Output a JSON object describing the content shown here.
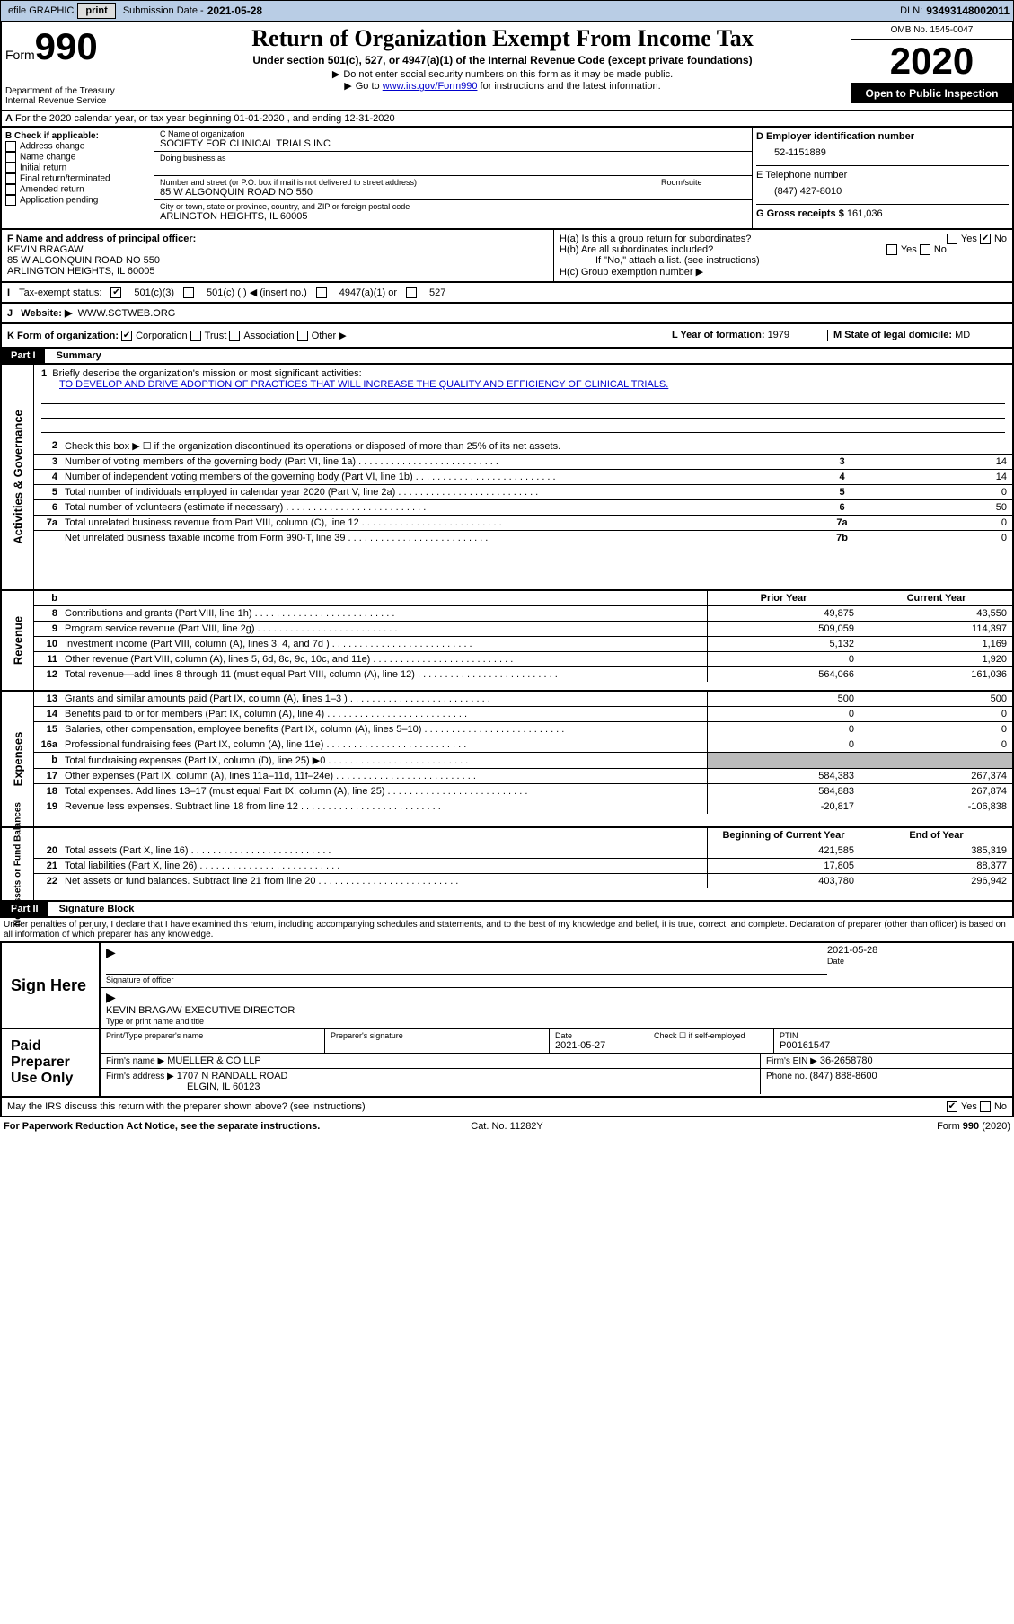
{
  "topbar": {
    "efile": "efile GRAPHIC",
    "print": "print",
    "subdate_label": "Submission Date - ",
    "subdate": "2021-05-28",
    "dln_label": "DLN: ",
    "dln": "93493148002011"
  },
  "header": {
    "form_label": "Form",
    "form_num": "990",
    "dept": "Department of the Treasury",
    "irs": "Internal Revenue Service",
    "title": "Return of Organization Exempt From Income Tax",
    "subtitle": "Under section 501(c), 527, or 4947(a)(1) of the Internal Revenue Code (except private foundations)",
    "instr1": "Do not enter social security numbers on this form as it may be made public.",
    "instr2_pre": "Go to ",
    "instr2_link": "www.irs.gov/Form990",
    "instr2_post": " for instructions and the latest information.",
    "omb": "OMB No. 1545-0047",
    "year": "2020",
    "open": "Open to Public Inspection"
  },
  "rowA": {
    "text": "For the 2020 calendar year, or tax year beginning 01-01-2020     , and ending 12-31-2020",
    "prefix": "A"
  },
  "checkB": {
    "title": "B Check if applicable:",
    "items": [
      "Address change",
      "Name change",
      "Initial return",
      "Final return/terminated",
      "Amended return",
      "Application pending"
    ]
  },
  "orgC": {
    "name_label": "C Name of organization",
    "name": "SOCIETY FOR CLINICAL TRIALS INC",
    "dba_label": "Doing business as",
    "addr_label": "Number and street (or P.O. box if mail is not delivered to street address)",
    "room_label": "Room/suite",
    "addr": "85 W ALGONQUIN ROAD NO 550",
    "city_label": "City or town, state or province, country, and ZIP or foreign postal code",
    "city": "ARLINGTON HEIGHTS, IL  60005"
  },
  "rightD": {
    "ein_label": "D Employer identification number",
    "ein": "52-1151889",
    "phone_label": "E Telephone number",
    "phone": "(847) 427-8010",
    "gross_label": "G Gross receipts $ ",
    "gross": "161,036"
  },
  "rowF": {
    "label": "F  Name and address of principal officer:",
    "name": "KEVIN BRAGAW",
    "addr1": "85 W ALGONQUIN ROAD NO 550",
    "addr2": "ARLINGTON HEIGHTS, IL  60005"
  },
  "rowH": {
    "ha": "H(a)  Is this a group return for subordinates?",
    "hb": "H(b)  Are all subordinates included?",
    "hb_note": "If \"No,\" attach a list. (see instructions)",
    "hc": "H(c)  Group exemption number ▶",
    "yes": "Yes",
    "no": "No"
  },
  "taxI": {
    "label": "Tax-exempt status:",
    "opt1": "501(c)(3)",
    "opt2": "501(c) (  ) ◀ (insert no.)",
    "opt3": "4947(a)(1) or",
    "opt4": "527"
  },
  "rowJ": {
    "label": "J",
    "web_label": "Website: ▶",
    "web": "WWW.SCTWEB.ORG"
  },
  "rowK": {
    "label": "K Form of organization:",
    "corp": "Corporation",
    "trust": "Trust",
    "assoc": "Association",
    "other": "Other ▶",
    "L_label": "L Year of formation: ",
    "L_val": "1979",
    "M_label": "M State of legal domicile: ",
    "M_val": "MD"
  },
  "part1": {
    "hdr": "Part I",
    "title": "Summary",
    "line1_label": "Briefly describe the organization's mission or most significant activities:",
    "line1_text": "TO DEVELOP AND DRIVE ADOPTION OF PRACTICES THAT WILL INCREASE THE QUALITY AND EFFICIENCY OF CLINICAL TRIALS.",
    "line2": "Check this box ▶ ☐  if the organization discontinued its operations or disposed of more than 25% of its net assets.",
    "prior_year": "Prior Year",
    "current_year": "Current Year",
    "begin_year": "Beginning of Current Year",
    "end_year": "End of Year",
    "lines_gov": [
      {
        "n": "3",
        "t": "Number of voting members of the governing body (Part VI, line 1a)",
        "box": "3",
        "v": "14"
      },
      {
        "n": "4",
        "t": "Number of independent voting members of the governing body (Part VI, line 1b)",
        "box": "4",
        "v": "14"
      },
      {
        "n": "5",
        "t": "Total number of individuals employed in calendar year 2020 (Part V, line 2a)",
        "box": "5",
        "v": "0"
      },
      {
        "n": "6",
        "t": "Total number of volunteers (estimate if necessary)",
        "box": "6",
        "v": "50"
      },
      {
        "n": "7a",
        "t": "Total unrelated business revenue from Part VIII, column (C), line 12",
        "box": "7a",
        "v": "0"
      },
      {
        "n": "",
        "t": "Net unrelated business taxable income from Form 990-T, line 39",
        "box": "7b",
        "v": "0"
      }
    ],
    "lines_rev": [
      {
        "n": "8",
        "t": "Contributions and grants (Part VIII, line 1h)",
        "py": "49,875",
        "cy": "43,550"
      },
      {
        "n": "9",
        "t": "Program service revenue (Part VIII, line 2g)",
        "py": "509,059",
        "cy": "114,397"
      },
      {
        "n": "10",
        "t": "Investment income (Part VIII, column (A), lines 3, 4, and 7d )",
        "py": "5,132",
        "cy": "1,169"
      },
      {
        "n": "11",
        "t": "Other revenue (Part VIII, column (A), lines 5, 6d, 8c, 9c, 10c, and 11e)",
        "py": "0",
        "cy": "1,920"
      },
      {
        "n": "12",
        "t": "Total revenue—add lines 8 through 11 (must equal Part VIII, column (A), line 12)",
        "py": "564,066",
        "cy": "161,036"
      }
    ],
    "lines_exp": [
      {
        "n": "13",
        "t": "Grants and similar amounts paid (Part IX, column (A), lines 1–3 )",
        "py": "500",
        "cy": "500"
      },
      {
        "n": "14",
        "t": "Benefits paid to or for members (Part IX, column (A), line 4)",
        "py": "0",
        "cy": "0"
      },
      {
        "n": "15",
        "t": "Salaries, other compensation, employee benefits (Part IX, column (A), lines 5–10)",
        "py": "0",
        "cy": "0"
      },
      {
        "n": "16a",
        "t": "Professional fundraising fees (Part IX, column (A), line 11e)",
        "py": "0",
        "cy": "0"
      },
      {
        "n": "b",
        "t": "Total fundraising expenses (Part IX, column (D), line 25) ▶0",
        "py": "",
        "cy": "",
        "shade": true
      },
      {
        "n": "17",
        "t": "Other expenses (Part IX, column (A), lines 11a–11d, 11f–24e)",
        "py": "584,383",
        "cy": "267,374"
      },
      {
        "n": "18",
        "t": "Total expenses. Add lines 13–17 (must equal Part IX, column (A), line 25)",
        "py": "584,883",
        "cy": "267,874"
      },
      {
        "n": "19",
        "t": "Revenue less expenses. Subtract line 18 from line 12",
        "py": "-20,817",
        "cy": "-106,838"
      }
    ],
    "lines_net": [
      {
        "n": "20",
        "t": "Total assets (Part X, line 16)",
        "py": "421,585",
        "cy": "385,319"
      },
      {
        "n": "21",
        "t": "Total liabilities (Part X, line 26)",
        "py": "17,805",
        "cy": "88,377"
      },
      {
        "n": "22",
        "t": "Net assets or fund balances. Subtract line 21 from line 20",
        "py": "403,780",
        "cy": "296,942"
      }
    ],
    "vtabs": {
      "gov": "Activities & Governance",
      "rev": "Revenue",
      "exp": "Expenses",
      "net": "Net Assets or Fund Balances"
    }
  },
  "part2": {
    "hdr": "Part II",
    "title": "Signature Block",
    "decl": "Under penalties of perjury, I declare that I have examined this return, including accompanying schedules and statements, and to the best of my knowledge and belief, it is true, correct, and complete. Declaration of preparer (other than officer) is based on all information of which preparer has any knowledge.",
    "sign_here": "Sign Here",
    "sig_officer": "Signature of officer",
    "sig_date": "2021-05-28",
    "date_label": "Date",
    "officer_name": "KEVIN BRAGAW EXECUTIVE DIRECTOR",
    "type_name": "Type or print name and title",
    "paid": "Paid Preparer Use Only",
    "prep_name_label": "Print/Type preparer's name",
    "prep_sig_label": "Preparer's signature",
    "prep_date_label": "Date",
    "prep_date": "2021-05-27",
    "check_self": "Check ☐ if self-employed",
    "ptin_label": "PTIN",
    "ptin": "P00161547",
    "firm_name_label": "Firm's name    ▶",
    "firm_name": "MUELLER & CO LLP",
    "firm_ein_label": "Firm's EIN ▶",
    "firm_ein": "36-2658780",
    "firm_addr_label": "Firm's address ▶",
    "firm_addr1": "1707 N RANDALL ROAD",
    "firm_addr2": "ELGIN, IL  60123",
    "firm_phone_label": "Phone no. ",
    "firm_phone": "(847) 888-8600",
    "discuss": "May the IRS discuss this return with the preparer shown above? (see instructions)"
  },
  "footer": {
    "left": "For Paperwork Reduction Act Notice, see the separate instructions.",
    "mid": "Cat. No. 11282Y",
    "right": "Form 990 (2020)"
  }
}
